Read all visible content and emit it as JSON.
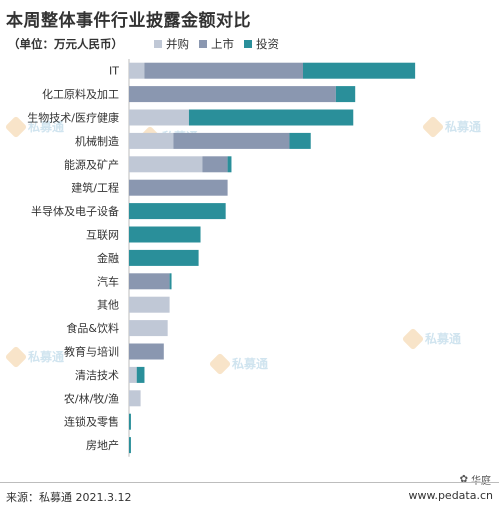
{
  "title": "本周整体事件行业披露金额对比",
  "unit": "（单位：万元人民币）",
  "legend": [
    {
      "name": "并购",
      "color": "#c0c8d6"
    },
    {
      "name": "上市",
      "color": "#8a97b0"
    },
    {
      "name": "投资",
      "color": "#2a8f9a"
    }
  ],
  "watermarks": [
    "私募通",
    "私募通",
    "私募通",
    "私募通",
    "私募通",
    "私募通"
  ],
  "badge": "华庭",
  "footer": {
    "source": "来源：私募通 2021.3.12",
    "site": "www.pedata.cn"
  },
  "chart_data": {
    "type": "bar",
    "orientation": "horizontal",
    "stacked": true,
    "categories": [
      "IT",
      "化工原料及加工",
      "生物技术/医疗健康",
      "机械制造",
      "能源及矿产",
      "建筑/工程",
      "半导体及电子设备",
      "互联网",
      "金融",
      "汽车",
      "其他",
      "食品&饮料",
      "教育与培训",
      "清洁技术",
      "农/林/牧/渔",
      "连锁及零售",
      "房地产"
    ],
    "series": [
      {
        "name": "并购",
        "values": [
          8,
          0,
          31,
          23,
          38,
          0,
          0,
          0,
          0,
          0,
          21,
          20,
          0,
          4,
          6,
          0,
          0
        ]
      },
      {
        "name": "上市",
        "values": [
          82,
          107,
          0,
          60,
          13,
          51,
          0,
          0,
          0,
          21,
          0,
          0,
          18,
          0,
          0,
          0,
          0
        ]
      },
      {
        "name": "投资",
        "values": [
          58,
          10,
          85,
          11,
          2,
          0,
          50,
          37,
          36,
          1,
          0,
          0,
          0,
          4,
          0,
          1,
          1
        ]
      }
    ],
    "xlim": [
      0,
      150
    ],
    "grid": false,
    "legend_position": "top"
  }
}
